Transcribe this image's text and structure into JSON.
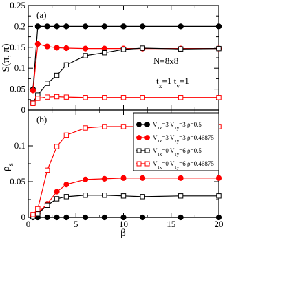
{
  "chart_data": [
    {
      "panel_label": "(a)",
      "type": "line",
      "ylabel": "S(π, π)",
      "xlim": [
        0,
        20
      ],
      "ylim": [
        0,
        0.25
      ],
      "yticks": [
        0,
        0.05,
        0.1,
        0.15,
        0.2,
        0.25
      ],
      "ytick_labels": [
        "0",
        "0.05",
        "0.1",
        "0.15",
        "0.2",
        "0.25"
      ],
      "annotations": [
        {
          "text": "N=8x8",
          "parts": [
            {
              "t": "N=8x8",
              "sub": false
            }
          ]
        },
        {
          "text": "tx=1 ty=1",
          "parts": [
            {
              "t": "t",
              "sub": false
            },
            {
              "t": "x",
              "sub": true
            },
            {
              "t": "=1    t",
              "sub": false
            },
            {
              "t": "y",
              "sub": true
            },
            {
              "t": "=1",
              "sub": false
            }
          ]
        }
      ],
      "series": [
        {
          "color": "#000000",
          "marker": "circle-filled",
          "x": [
            0.5,
            1,
            2,
            3,
            4,
            6,
            8,
            10,
            12,
            16,
            20
          ],
          "y": [
            0.05,
            0.2,
            0.2,
            0.2,
            0.2,
            0.2,
            0.2,
            0.2,
            0.2,
            0.2,
            0.2
          ]
        },
        {
          "color": "#ff0000",
          "marker": "circle-filled",
          "x": [
            0.5,
            1,
            2,
            3,
            4,
            6,
            8,
            10,
            12,
            16,
            20
          ],
          "y": [
            0.047,
            0.158,
            0.152,
            0.149,
            0.148,
            0.147,
            0.147,
            0.147,
            0.147,
            0.147,
            0.147
          ]
        },
        {
          "color": "#000000",
          "marker": "square-open",
          "x": [
            0.5,
            1,
            2,
            3,
            4,
            6,
            8,
            10,
            12,
            16,
            20
          ],
          "y": [
            0.018,
            0.036,
            0.064,
            0.083,
            0.108,
            0.13,
            0.137,
            0.145,
            0.148,
            0.146,
            0.147
          ]
        },
        {
          "color": "#ff0000",
          "marker": "square-open",
          "x": [
            0.5,
            1,
            2,
            3,
            4,
            6,
            8,
            10,
            12,
            16,
            20
          ],
          "y": [
            0.016,
            0.028,
            0.031,
            0.032,
            0.031,
            0.03,
            0.03,
            0.03,
            0.03,
            0.03,
            0.03
          ]
        }
      ]
    },
    {
      "panel_label": "(b)",
      "type": "line",
      "ylabel": "ρs",
      "ylabel_parts": [
        {
          "t": "ρ",
          "sub": false
        },
        {
          "t": "s",
          "sub": true
        }
      ],
      "xlabel": "β",
      "xlim": [
        0,
        20
      ],
      "ylim": [
        0,
        0.15
      ],
      "xticks": [
        0,
        5,
        10,
        15,
        20
      ],
      "xtick_labels": [
        "0",
        "5",
        "10",
        "15",
        "20"
      ],
      "yticks": [
        0,
        0.05,
        0.1
      ],
      "ytick_labels": [
        "0",
        "0.05",
        "0.1"
      ],
      "legend_position": "upper-right",
      "series": [
        {
          "name": "V1x=3 V1y=3 ρ=0.5",
          "legend_parts": [
            {
              "t": "V",
              "sub": false
            },
            {
              "t": "1x",
              "sub": true
            },
            {
              "t": "=3  V",
              "sub": false
            },
            {
              "t": "1y",
              "sub": true
            },
            {
              "t": "=3  ρ=0.5",
              "sub": false
            }
          ],
          "color": "#000000",
          "marker": "circle-filled",
          "x": [
            0.5,
            1,
            2,
            3,
            4,
            6,
            8,
            10,
            12,
            16,
            20
          ],
          "y": [
            0,
            0,
            0,
            0,
            0,
            0,
            0,
            0,
            0,
            0,
            0
          ]
        },
        {
          "name": "V1x=3 V1y=3 ρ=0.46875",
          "legend_parts": [
            {
              "t": "V",
              "sub": false
            },
            {
              "t": "1x",
              "sub": true
            },
            {
              "t": "=3  V",
              "sub": false
            },
            {
              "t": "1y",
              "sub": true
            },
            {
              "t": "=3  ρ=0.46875",
              "sub": false
            }
          ],
          "color": "#ff0000",
          "marker": "circle-filled",
          "x": [
            0.5,
            1,
            2,
            3,
            4,
            6,
            8,
            10,
            12,
            16,
            20
          ],
          "y": [
            0.001,
            0.006,
            0.019,
            0.036,
            0.046,
            0.053,
            0.054,
            0.055,
            0.055,
            0.055,
            0.055
          ]
        },
        {
          "name": "V1x=0 V1y=6 ρ=0.5",
          "legend_parts": [
            {
              "t": "V",
              "sub": false
            },
            {
              "t": "1x",
              "sub": true
            },
            {
              "t": "=0  V",
              "sub": false
            },
            {
              "t": "1y",
              "sub": true
            },
            {
              "t": "=6  ρ=0.5",
              "sub": false
            }
          ],
          "color": "#000000",
          "marker": "square-open",
          "x": [
            0.5,
            1,
            2,
            3,
            4,
            6,
            8,
            10,
            12,
            16,
            20
          ],
          "y": [
            0.001,
            0.005,
            0.017,
            0.026,
            0.029,
            0.031,
            0.031,
            0.03,
            0.029,
            0.03,
            0.03
          ]
        },
        {
          "name": "V1x=0 V1y=6 ρ=0.46875",
          "legend_parts": [
            {
              "t": "V",
              "sub": false
            },
            {
              "t": "1x",
              "sub": true
            },
            {
              "t": "=0  V",
              "sub": false
            },
            {
              "t": "1y",
              "sub": true
            },
            {
              "t": "=6  ρ=0.46875",
              "sub": false
            }
          ],
          "color": "#ff0000",
          "marker": "square-open",
          "x": [
            0.5,
            1,
            2,
            3,
            4,
            6,
            8,
            10,
            12,
            16,
            20
          ],
          "y": [
            0.004,
            0.012,
            0.066,
            0.099,
            0.115,
            0.125,
            0.127,
            0.127,
            0.127,
            0.127,
            0.127
          ]
        }
      ]
    }
  ]
}
